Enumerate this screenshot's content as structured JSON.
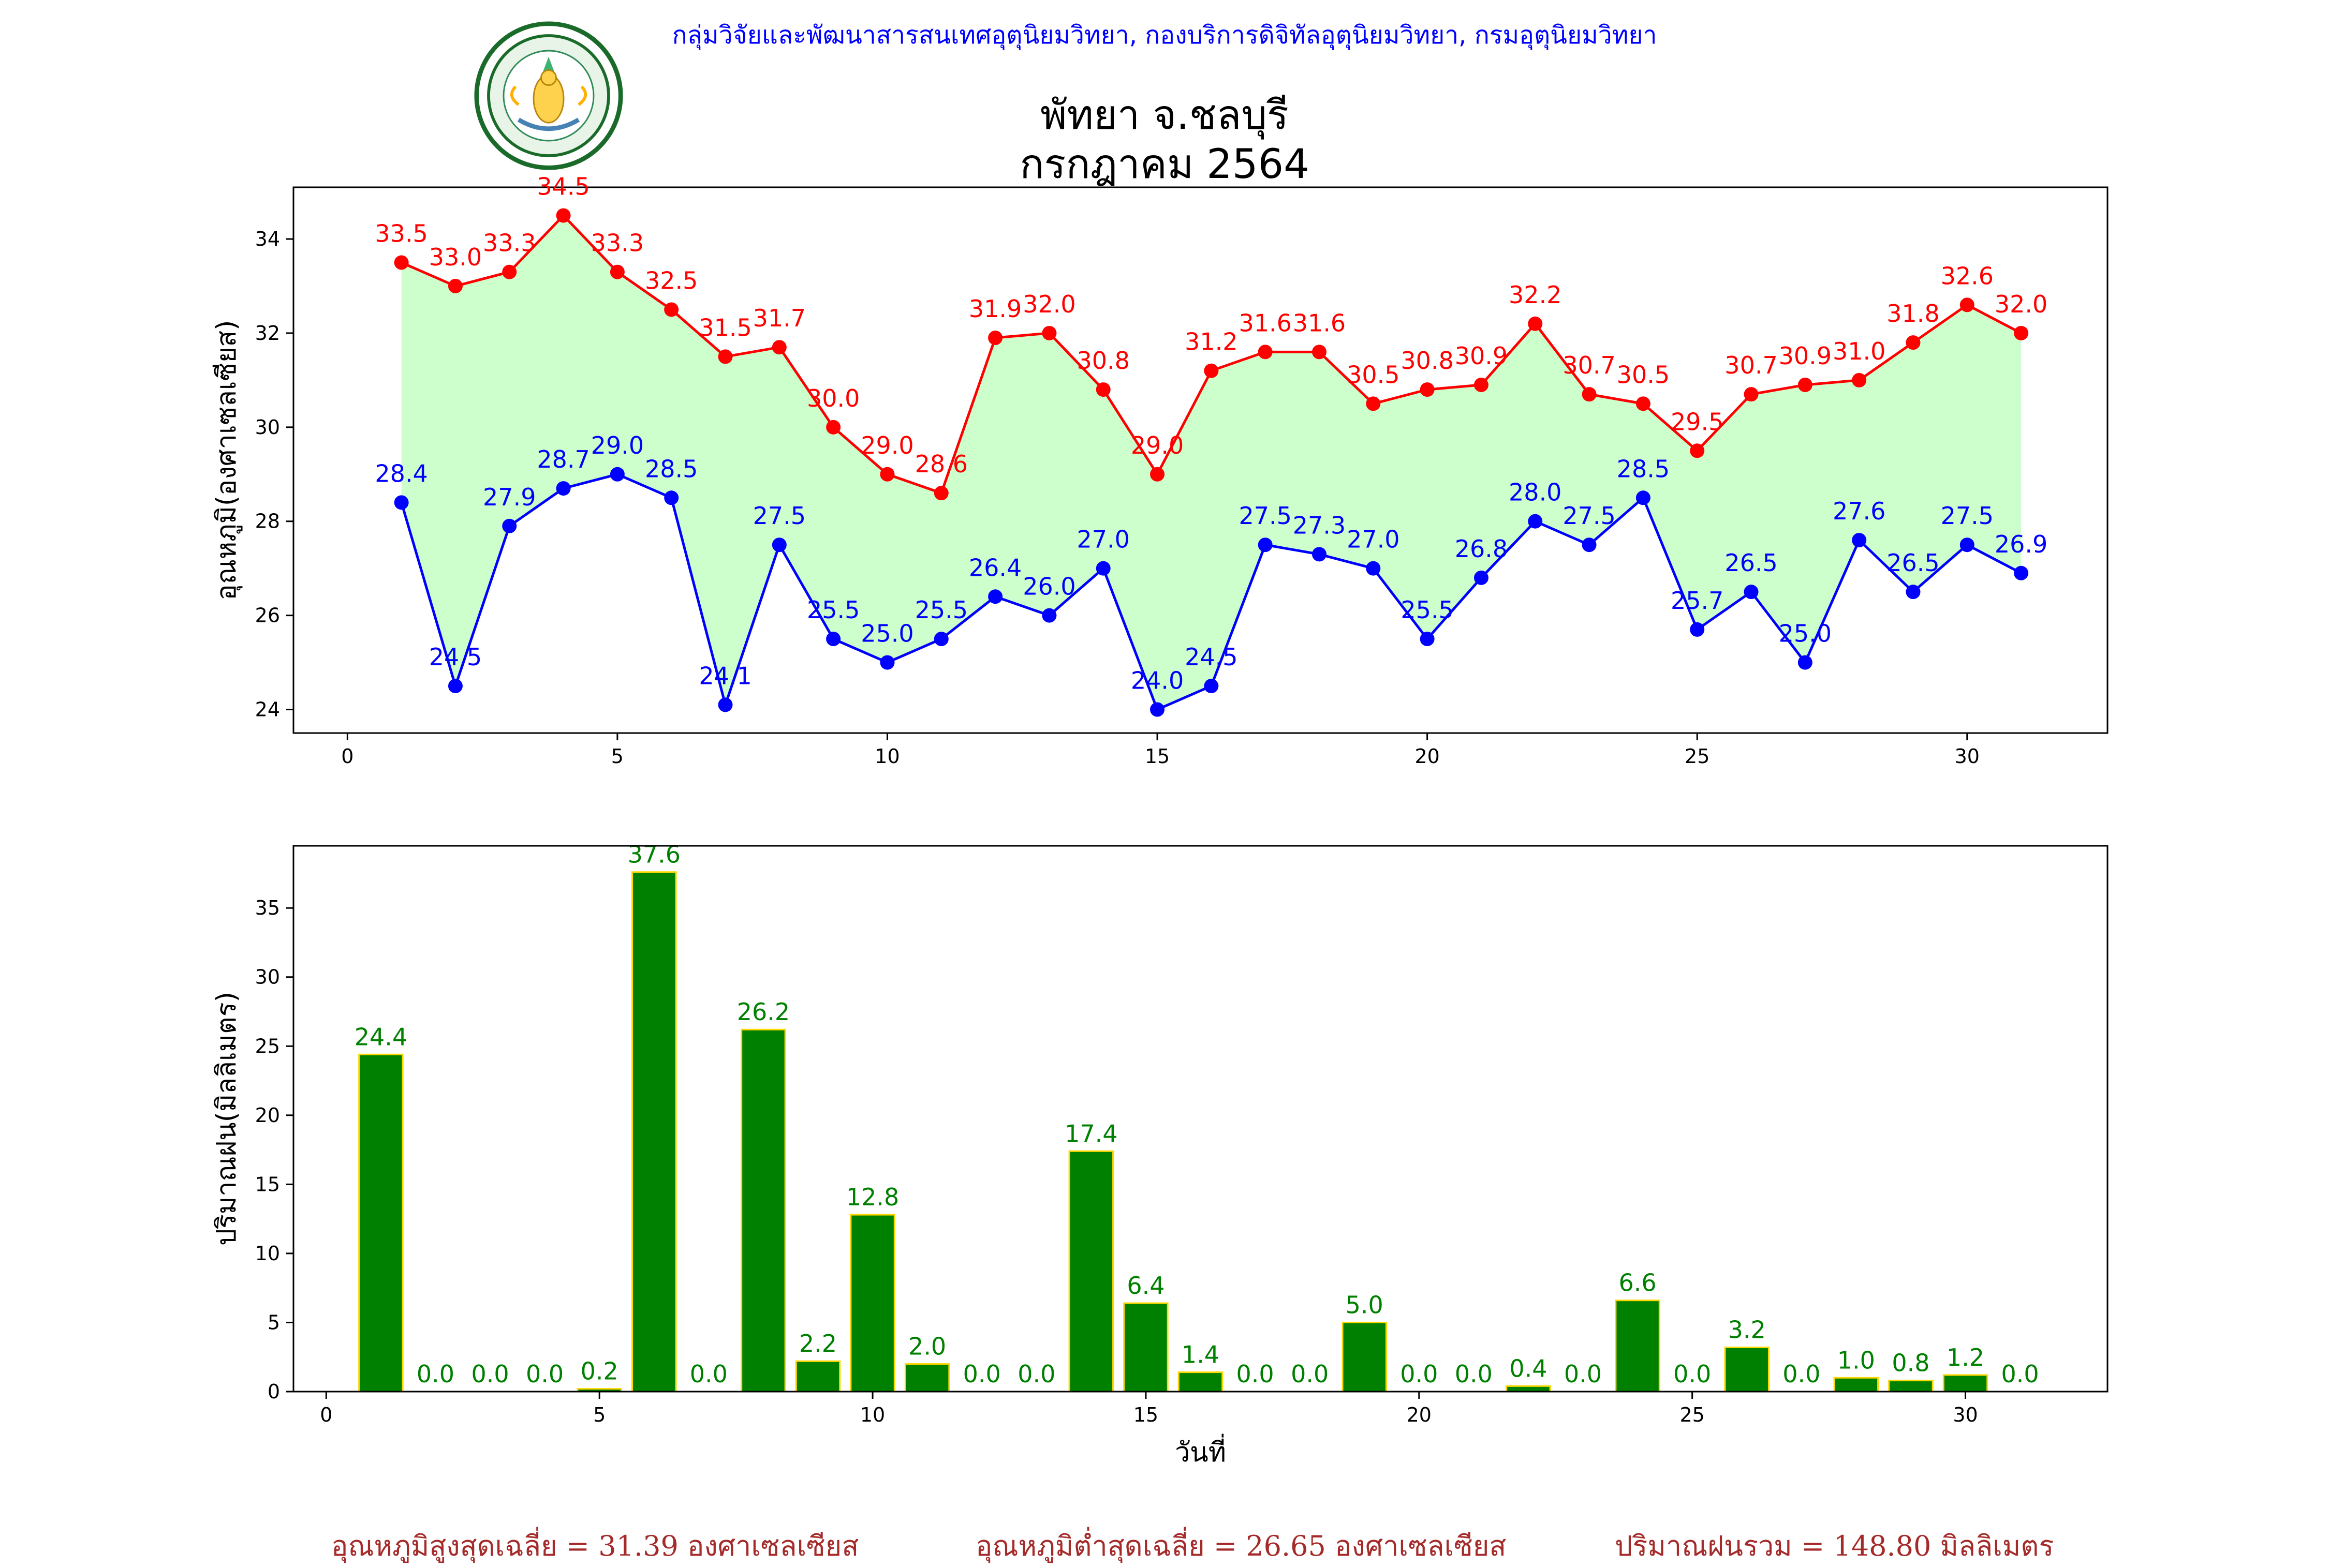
{
  "header": {
    "org_line": "กลุ่มวิจัยและพัฒนาสารสนเทศอุตุนิยมวิทยา, กองบริการดิจิทัลอุตุนิยมวิทยา, กรมอุตุนิยมวิทยา",
    "title_line1": "พัทยา จ.ชลบุรี",
    "title_line2": "กรกฎาคม 2564",
    "logo_icon": "meteorological-department-seal-icon"
  },
  "footer": {
    "avg_max": "อุณหภูมิสูงสุดเฉลี่ย = 31.39 องศาเซลเซียส",
    "avg_min": "อุณหภูมิต่ำสุดเฉลี่ย = 26.65 องศาเซลเซียส",
    "total_rain": "ปริมาณฝนรวม = 148.80 มิลลิเมตร"
  },
  "colors": {
    "max_line": "#ff0000",
    "min_line": "#0000ff",
    "fill": "#ccffcc",
    "bar": "#008000",
    "bar_edge": "#ffd700",
    "footer": "#a52a2a",
    "header": "#0000ff"
  },
  "chart_data": [
    {
      "type": "line",
      "ylabel": "อุณหภูมิ(องศาเซลเซียส)",
      "xlim": [
        -1,
        32.6
      ],
      "ylim": [
        23.5,
        35.1
      ],
      "xticks": [
        0,
        5,
        10,
        15,
        20,
        25,
        30
      ],
      "yticks": [
        24,
        26,
        28,
        30,
        32,
        34
      ],
      "x": [
        1,
        2,
        3,
        4,
        5,
        6,
        7,
        8,
        9,
        10,
        11,
        12,
        13,
        14,
        15,
        16,
        17,
        18,
        19,
        20,
        21,
        22,
        23,
        24,
        25,
        26,
        27,
        28,
        29,
        30,
        31
      ],
      "series": [
        {
          "values": [
            33.5,
            33.0,
            33.3,
            34.5,
            33.3,
            32.5,
            31.5,
            31.7,
            30.0,
            29.0,
            28.6,
            31.9,
            32.0,
            30.8,
            29.0,
            31.2,
            31.6,
            31.6,
            30.5,
            30.8,
            30.9,
            32.2,
            30.7,
            30.5,
            29.5,
            30.7,
            30.9,
            31.0,
            31.8,
            32.6,
            32.0
          ]
        },
        {
          "values": [
            28.4,
            24.5,
            27.9,
            28.7,
            29.0,
            28.5,
            24.1,
            27.5,
            25.5,
            25.0,
            25.5,
            26.4,
            26.0,
            27.0,
            24.0,
            24.5,
            27.5,
            27.3,
            27.0,
            25.5,
            26.8,
            28.0,
            27.5,
            28.5,
            25.7,
            26.5,
            25.0,
            27.6,
            26.5,
            27.5,
            26.9
          ]
        }
      ],
      "max_labels": [
        "33.5",
        "33.0",
        "33.3",
        "34.5",
        "33.3",
        "32.5",
        "31.5",
        "31.7",
        "30.0",
        "29.0",
        "28.6",
        "31.9",
        "32.0",
        "30.8",
        "29.0",
        "31.2",
        "31.6",
        "31.6",
        "30.5",
        "30.8",
        "30.9",
        "32.2",
        "30.7",
        "30.5",
        "29.5",
        "30.7",
        "30.9",
        "31.0",
        "31.8",
        "32.6",
        "32.0"
      ],
      "min_labels": [
        "28.4",
        "24.5",
        "27.9",
        "28.7",
        "29.0",
        "28.5",
        "24.1",
        "27.5",
        "25.5",
        "25.0",
        "25.5",
        "26.4",
        "26.0",
        "27.0",
        "24.0",
        "24.5",
        "27.5",
        "27.3",
        "27.0",
        "25.5",
        "26.8",
        "28.0",
        "27.5",
        "28.5",
        "25.7",
        "26.5",
        "25.0",
        "27.6",
        "26.5",
        "27.5",
        "26.9"
      ],
      "grid": false
    },
    {
      "type": "bar",
      "xlabel": "วันที่",
      "ylabel": "ปริมาณฝน(มิลลิเมตร)",
      "xlim": [
        -0.6,
        32.6
      ],
      "ylim": [
        0,
        39.5
      ],
      "xticks": [
        0,
        5,
        10,
        15,
        20,
        25,
        30
      ],
      "yticks": [
        0,
        5,
        10,
        15,
        20,
        25,
        30,
        35
      ],
      "x": [
        1,
        2,
        3,
        4,
        5,
        6,
        7,
        8,
        9,
        10,
        11,
        12,
        13,
        14,
        15,
        16,
        17,
        18,
        19,
        20,
        21,
        22,
        23,
        24,
        25,
        26,
        27,
        28,
        29,
        30,
        31
      ],
      "values": [
        24.4,
        0.0,
        0.0,
        0.0,
        0.2,
        37.6,
        0.0,
        26.2,
        2.2,
        12.8,
        2.0,
        0.0,
        0.0,
        17.4,
        6.4,
        1.4,
        0.0,
        0.0,
        5.0,
        0.0,
        0.0,
        0.4,
        0.0,
        6.6,
        0.0,
        3.2,
        0.0,
        1.0,
        0.8,
        1.2,
        0.0
      ],
      "labels": [
        "24.4",
        "0.0",
        "0.0",
        "0.0",
        "0.2",
        "37.6",
        "0.0",
        "26.2",
        "2.2",
        "12.8",
        "2.0",
        "0.0",
        "0.0",
        "17.4",
        "6.4",
        "1.4",
        "0.0",
        "0.0",
        "5.0",
        "0.0",
        "0.0",
        "0.4",
        "0.0",
        "6.6",
        "0.0",
        "3.2",
        "0.0",
        "1.0",
        "0.8",
        "1.2",
        "0.0"
      ],
      "grid": false
    }
  ]
}
